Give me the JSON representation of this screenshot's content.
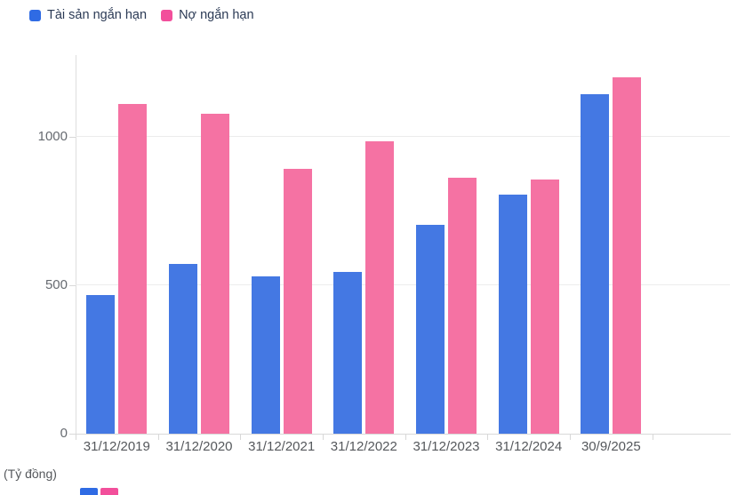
{
  "legend": {
    "items": [
      {
        "label": "Tài sản ngắn hạn",
        "color": "#2f6be4"
      },
      {
        "label": "Nợ ngắn hạn",
        "color": "#f24f9b"
      }
    ]
  },
  "chart_data": {
    "type": "bar",
    "title": "",
    "categories": [
      "31/12/2019",
      "31/12/2020",
      "31/12/2021",
      "31/12/2022",
      "31/12/2023",
      "31/12/2024",
      "30/9/2025"
    ],
    "series": [
      {
        "name": "Tài sản ngắn hạn",
        "color": "#4478e3",
        "values": [
          467,
          573,
          530,
          545,
          704,
          806,
          1142
        ]
      },
      {
        "name": "Nợ ngắn hạn",
        "color": "#f572a3",
        "values": [
          1110,
          1078,
          892,
          985,
          863,
          857,
          1200
        ]
      }
    ],
    "xlabel": "",
    "ylabel": "",
    "unit_label": "(Tỷ đồng)",
    "y_ticks": [
      0,
      500,
      1000
    ],
    "ylim": [
      0,
      1275
    ],
    "grid": true,
    "legend_position": "top-left"
  },
  "footer": {
    "unit_label": "(Tỷ đồng)"
  }
}
